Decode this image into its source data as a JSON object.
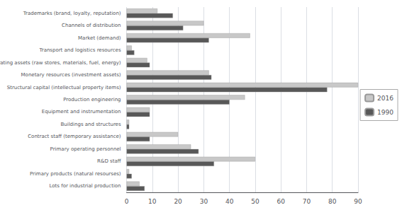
{
  "chart_data": {
    "type": "bar",
    "orientation": "horizontal",
    "categories": [
      "Lots for industrial production",
      "Primary products (natural resourses)",
      "R&D staff",
      "Primary operating personnel",
      "Contract staff (temporary assistance)",
      "Buildings and structures",
      "Equipment and instrumentation",
      "Production engineering",
      "Structural capital (intellectual property items)",
      "Monetary resources (investment assets)",
      "Operating assets (raw stores, materials, fuel, energy)",
      "Transport and logistics resources",
      "Market (demand)",
      "Channels of distribution",
      "Trademarks (brand, loyalty, reputation)"
    ],
    "series": [
      {
        "name": "2016",
        "color": "#c8c8c8",
        "values": [
          5,
          1,
          50,
          25,
          20,
          1,
          9,
          46,
          90,
          32,
          8,
          2,
          48,
          30,
          12
        ]
      },
      {
        "name": "1990",
        "color": "#585858",
        "values": [
          7,
          2,
          34,
          28,
          9,
          1,
          9,
          40,
          78,
          33,
          9,
          3,
          32,
          22,
          18
        ]
      }
    ],
    "xlim": [
      0,
      90
    ],
    "xticks": [
      0,
      10,
      20,
      30,
      40,
      50,
      60,
      70,
      80,
      90
    ],
    "grid": true,
    "legend": "right"
  }
}
